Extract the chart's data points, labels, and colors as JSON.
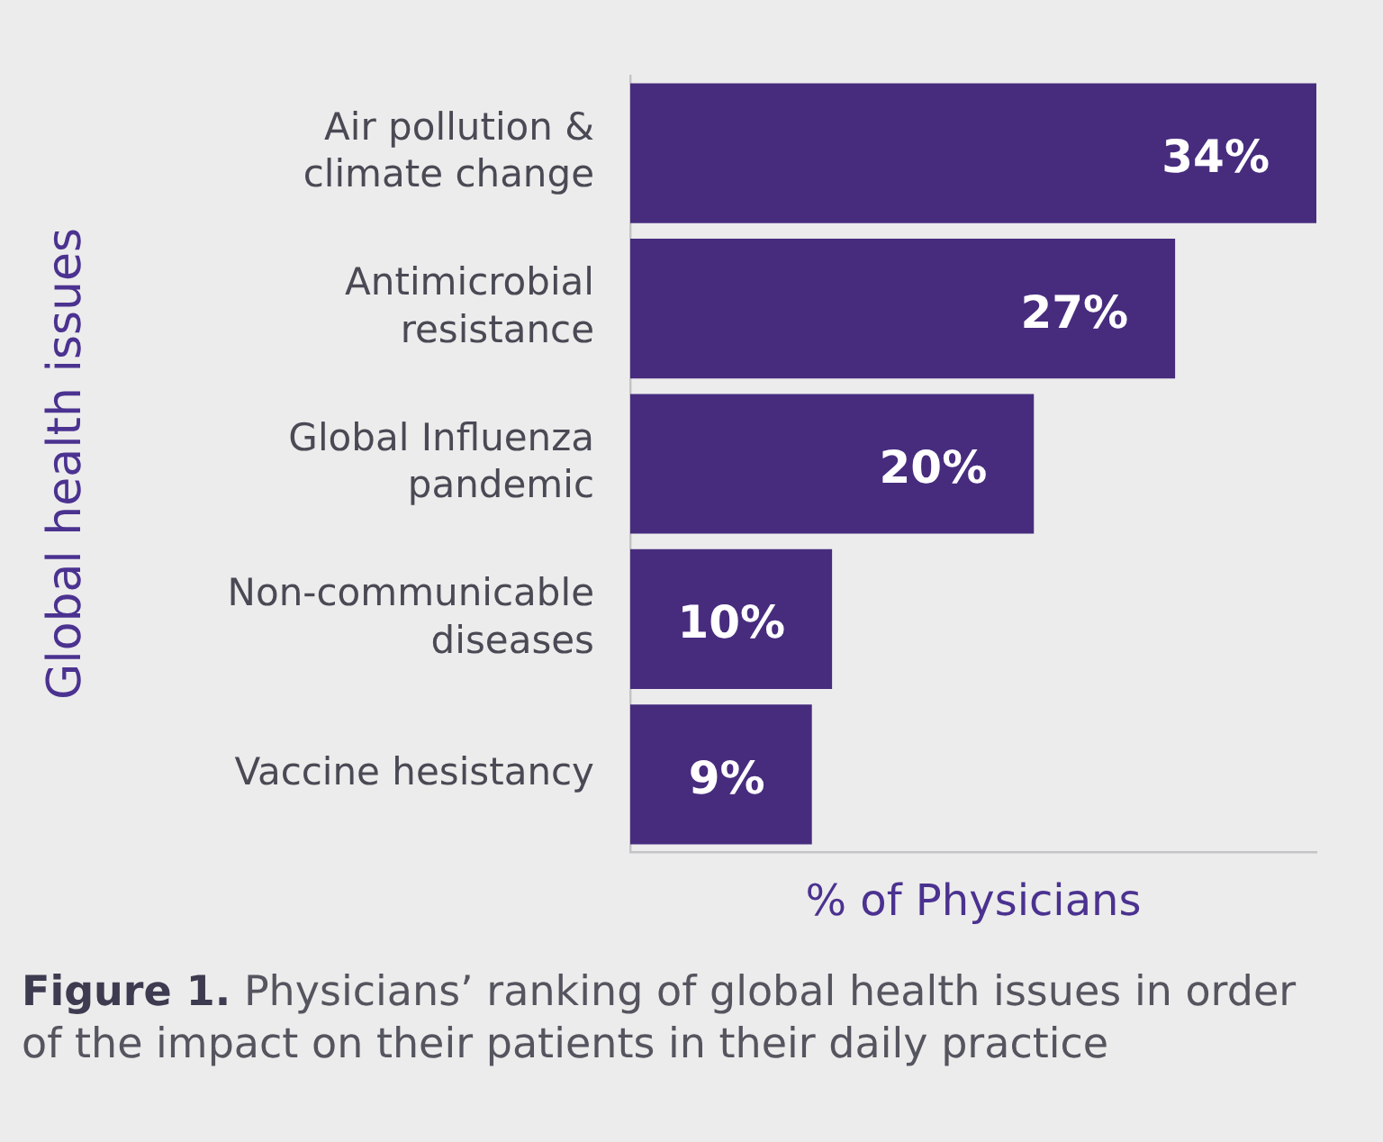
{
  "chart_data": {
    "type": "bar",
    "orientation": "horizontal",
    "categories": [
      "Air pollution & climate change",
      "Antimicrobial resistance",
      "Global Influenza pandemic",
      "Non-communicable diseases",
      "Vaccine hesistancy"
    ],
    "values": [
      34,
      27,
      20,
      10,
      9
    ],
    "color": "#472c7e",
    "value_labels": [
      "34%",
      "27%",
      "20%",
      "10%",
      "9%"
    ],
    "xlabel": "% of Physicians",
    "ylabel": "Global health issues",
    "annotations": [
      "Figure 1. Physicians’ ranking of global health issues in order of the impact on their patients in their daily practice"
    ]
  }
}
